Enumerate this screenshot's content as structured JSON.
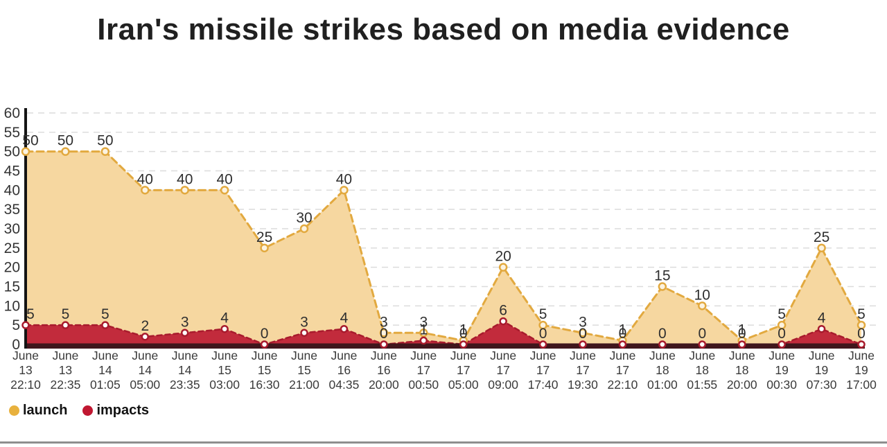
{
  "title": "Iran's missile strikes based on media evidence",
  "chart_data": {
    "type": "area",
    "title": "Iran's missile strikes based on media evidence",
    "categories": [
      "June 13 22:10",
      "June 13 22:35",
      "June 14 01:05",
      "June 14 05:00",
      "June 14 23:35",
      "June 15 03:00",
      "June 15 16:30",
      "June 15 21:00",
      "June 16 04:35",
      "June 16 20:00",
      "June 17 00:50",
      "June 17 05:00",
      "June 17 09:00",
      "June 17 17:40",
      "June 17 19:30",
      "June 17 22:10",
      "June 18 01:00",
      "June 18 01:55",
      "June 18 20:00",
      "June 19 00:30",
      "June 19 07:30",
      "June 19 17:00"
    ],
    "series": [
      {
        "name": "launch",
        "values": [
          50,
          50,
          50,
          40,
          40,
          40,
          25,
          30,
          40,
          3,
          3,
          1,
          20,
          5,
          3,
          1,
          15,
          10,
          1,
          5,
          25,
          5
        ],
        "line_color": "#e2a93f",
        "fill_color": "#f6d7a0",
        "marker_fill": "#fcf3e0",
        "line_width": 3,
        "dash": "10 6",
        "marker_r": 5
      },
      {
        "name": "impacts",
        "values": [
          5,
          5,
          5,
          2,
          3,
          4,
          0,
          3,
          4,
          0,
          1,
          0,
          6,
          0,
          0,
          0,
          0,
          0,
          0,
          0,
          4,
          0
        ],
        "line_color": "#a81b2d",
        "fill_color": "#c22b3c",
        "marker_fill": "#ffffff",
        "line_width": 2.5,
        "dash": "7 5",
        "marker_r": 4.5
      }
    ],
    "ylim": [
      0,
      60
    ],
    "yticks": [
      0,
      5,
      10,
      15,
      20,
      25,
      30,
      35,
      40,
      45,
      50,
      55,
      60
    ],
    "xlabel": "",
    "ylabel": "",
    "grid": true,
    "line_style": "dashed",
    "legend_position": "bottom-left"
  },
  "legend": {
    "items": [
      {
        "label": "launch",
        "color": "#e8b13d"
      },
      {
        "label": "impacts",
        "color": "#c01731"
      }
    ]
  },
  "colors": {
    "background": "#ffffff",
    "title_text": "#202020",
    "axis_text": "#333333",
    "value_label_text": "#2f2f2f",
    "x_label_text": "#3a3a3a",
    "gridline": "#dcdcdc",
    "y_axis_line": "#141414",
    "x_baseline": "#40161c",
    "bottom_divider": "#8e8e8e"
  }
}
